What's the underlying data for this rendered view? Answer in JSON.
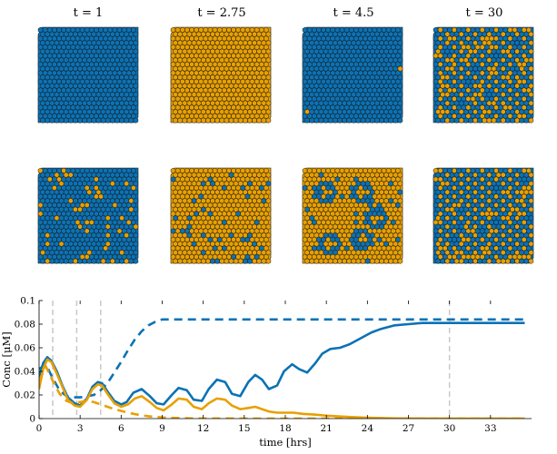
{
  "colors": {
    "blue": "#0b72b5",
    "orange": "#e8a000",
    "cell_edge": "#1a1a1a",
    "marker_line": "#c8c8c8",
    "axis": "#000000"
  },
  "panels": {
    "titles": [
      "t = 1",
      "t = 2.75",
      "t = 4.5",
      "t = 30"
    ],
    "grid": {
      "cols": 21,
      "rows": 22
    },
    "top_row": [
      {
        "base": "blue",
        "orange_ratio": 0.0,
        "pattern": "uniform"
      },
      {
        "base": "orange",
        "orange_ratio": 1.0,
        "pattern": "uniform"
      },
      {
        "base": "blue",
        "orange_ratio": 0.01,
        "pattern": "edge-specks"
      },
      {
        "base": "blue",
        "orange_ratio": 0.45,
        "pattern": "alternating-checker"
      }
    ],
    "bottom_row": [
      {
        "base": "blue",
        "orange_ratio": 0.12,
        "pattern": "scattered"
      },
      {
        "base": "orange",
        "orange_ratio": 0.9,
        "pattern": "scattered-blue-spots"
      },
      {
        "base": "orange",
        "orange_ratio": 0.6,
        "pattern": "rings"
      },
      {
        "base": "blue",
        "orange_ratio": 0.45,
        "pattern": "alternating-checker"
      }
    ]
  },
  "chart_data": {
    "type": "line",
    "title": "",
    "xlabel": "time [hrs]",
    "ylabel": "Conc [μM]",
    "xlim": [
      0,
      36
    ],
    "ylim": [
      0,
      0.1
    ],
    "xticks": [
      0,
      3,
      6,
      9,
      12,
      15,
      18,
      21,
      24,
      27,
      30,
      33
    ],
    "xtick_labels": [
      "0",
      "3",
      "6",
      "9",
      "12",
      "15",
      "18",
      "21",
      "24",
      "27",
      "30",
      "33"
    ],
    "yticks": [
      0,
      0.02,
      0.04,
      0.06,
      0.08,
      0.1
    ],
    "ytick_labels": [
      "0",
      "0.02",
      "0.04",
      "0.06",
      "0.08",
      "0.1"
    ],
    "vertical_markers": [
      1,
      2.75,
      4.5,
      30
    ],
    "series": [
      {
        "name": "blue-solid",
        "color": "blue",
        "style": "solid",
        "x": [
          0,
          0.3,
          0.6,
          0.9,
          1.3,
          1.7,
          2.1,
          2.6,
          3.0,
          3.5,
          3.9,
          4.3,
          4.6,
          5.0,
          5.5,
          6.0,
          6.4,
          6.9,
          7.5,
          8.1,
          8.6,
          9.1,
          9.7,
          10.2,
          10.8,
          11.3,
          11.9,
          12.4,
          13.0,
          13.6,
          14.1,
          14.7,
          15.3,
          15.8,
          16.3,
          16.8,
          17.4,
          17.9,
          18.5,
          19.0,
          19.6,
          20.2,
          20.7,
          21.3,
          22.0,
          22.7,
          23.5,
          24.3,
          25.0,
          26.0,
          27.0,
          28.0,
          29.0,
          30.0,
          32.0,
          34.0,
          35.5
        ],
        "y": [
          0.035,
          0.047,
          0.052,
          0.049,
          0.04,
          0.028,
          0.018,
          0.013,
          0.011,
          0.017,
          0.027,
          0.031,
          0.03,
          0.023,
          0.015,
          0.012,
          0.014,
          0.022,
          0.025,
          0.019,
          0.013,
          0.012,
          0.02,
          0.026,
          0.024,
          0.016,
          0.015,
          0.025,
          0.033,
          0.031,
          0.021,
          0.019,
          0.031,
          0.037,
          0.033,
          0.025,
          0.028,
          0.04,
          0.046,
          0.042,
          0.039,
          0.047,
          0.055,
          0.059,
          0.06,
          0.063,
          0.068,
          0.073,
          0.076,
          0.079,
          0.08,
          0.081,
          0.081,
          0.081,
          0.081,
          0.081,
          0.081
        ]
      },
      {
        "name": "blue-dashed",
        "color": "blue",
        "style": "dashed",
        "x": [
          0,
          0.5,
          1.0,
          1.5,
          2.0,
          2.5,
          3.0,
          3.5,
          4.0,
          4.5,
          5.0,
          5.5,
          6.0,
          6.5,
          7.0,
          7.5,
          8.0,
          8.5,
          9.0,
          9.5,
          10.0,
          11.0,
          12.0,
          15.0,
          20.0,
          25.0,
          30.0,
          33.0,
          35.5
        ],
        "y": [
          0.042,
          0.046,
          0.034,
          0.024,
          0.019,
          0.018,
          0.018,
          0.019,
          0.02,
          0.024,
          0.03,
          0.039,
          0.048,
          0.058,
          0.067,
          0.074,
          0.079,
          0.082,
          0.084,
          0.084,
          0.084,
          0.084,
          0.084,
          0.084,
          0.084,
          0.084,
          0.084,
          0.084,
          0.084
        ]
      },
      {
        "name": "orange-solid",
        "color": "orange",
        "style": "solid",
        "x": [
          0,
          0.3,
          0.6,
          0.9,
          1.3,
          1.7,
          2.1,
          2.6,
          3.0,
          3.5,
          3.9,
          4.3,
          4.6,
          5.0,
          5.5,
          6.0,
          6.5,
          7.0,
          7.5,
          8.1,
          8.6,
          9.1,
          9.7,
          10.2,
          10.8,
          11.3,
          11.9,
          12.4,
          13.0,
          13.6,
          14.1,
          14.7,
          15.3,
          15.8,
          16.3,
          16.8,
          17.4,
          18.0,
          18.6,
          19.3,
          20.0,
          21.0,
          22.0,
          23.0,
          24.0,
          25.0,
          26.0,
          27.0,
          30.0,
          35.5
        ],
        "y": [
          0.025,
          0.042,
          0.05,
          0.048,
          0.038,
          0.027,
          0.016,
          0.011,
          0.01,
          0.016,
          0.025,
          0.029,
          0.028,
          0.021,
          0.013,
          0.01,
          0.012,
          0.017,
          0.019,
          0.014,
          0.009,
          0.007,
          0.012,
          0.017,
          0.016,
          0.01,
          0.008,
          0.013,
          0.017,
          0.016,
          0.011,
          0.008,
          0.009,
          0.01,
          0.008,
          0.006,
          0.005,
          0.005,
          0.005,
          0.004,
          0.0035,
          0.0025,
          0.0018,
          0.0012,
          0.0007,
          0.0004,
          0.0002,
          0.0001,
          0.0,
          0.0
        ]
      },
      {
        "name": "orange-dashed",
        "color": "orange",
        "style": "dashed",
        "x": [
          0,
          0.5,
          1.0,
          1.5,
          2.0,
          2.5,
          3.0,
          3.5,
          4.0,
          4.5,
          5.0,
          5.5,
          6.0,
          6.5,
          7.0,
          7.5,
          8.0,
          8.5,
          9.0,
          10.0,
          11.0,
          12.0,
          15.0,
          20.0,
          25.0,
          35.5
        ],
        "y": [
          0.032,
          0.044,
          0.032,
          0.021,
          0.015,
          0.013,
          0.014,
          0.015,
          0.014,
          0.012,
          0.01,
          0.008,
          0.0065,
          0.005,
          0.0038,
          0.0028,
          0.002,
          0.0014,
          0.001,
          0.0005,
          0.0002,
          0.0001,
          0.0,
          0.0,
          0.0,
          0.0
        ]
      }
    ]
  }
}
